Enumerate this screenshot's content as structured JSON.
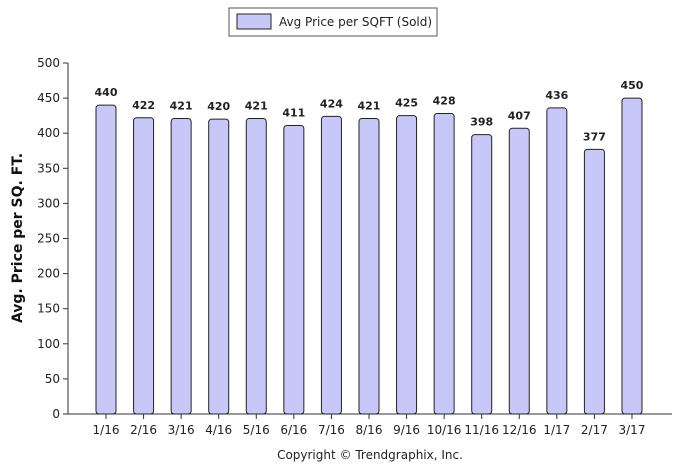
{
  "chart_data": {
    "type": "bar",
    "categories": [
      "1/16",
      "2/16",
      "3/16",
      "4/16",
      "5/16",
      "6/16",
      "7/16",
      "8/16",
      "9/16",
      "10/16",
      "11/16",
      "12/16",
      "1/17",
      "2/17",
      "3/17"
    ],
    "series": [
      {
        "name": "Avg Price per SQFT (Sold)",
        "values": [
          440,
          422,
          421,
          420,
          421,
          411,
          424,
          421,
          425,
          428,
          398,
          407,
          436,
          377,
          450
        ]
      }
    ],
    "ylabel": "Avg. Price per SQ. FT.",
    "xlabel": "",
    "ylim": [
      0,
      500
    ],
    "yticks": [
      0,
      50,
      100,
      150,
      200,
      250,
      300,
      350,
      400,
      450,
      500
    ],
    "grid": false,
    "legend_position": "top-center",
    "copyright": "Copyright © Trendgraphix, Inc.",
    "colors": {
      "bar_fill": "#c8c8f8",
      "bar_stroke": "#222222",
      "axis": "#333333"
    }
  }
}
